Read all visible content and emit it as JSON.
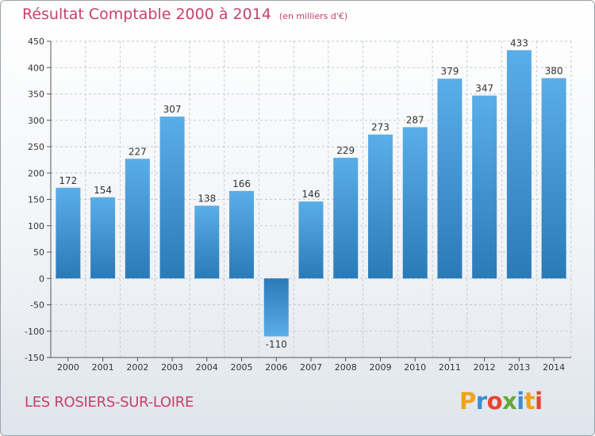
{
  "header": {
    "title": "Résultat Comptable 2000 à 2014",
    "subtitle": "(en milliers d'€)"
  },
  "footer": {
    "commune": "LES ROSIERS-SUR-LOIRE",
    "logo_text": "Proxiti"
  },
  "colors": {
    "title": "#c8416a",
    "bar_light": "#5aaee8",
    "bar_dark": "#2a7ab8",
    "grid": "#c4c9cf"
  },
  "chart_data": {
    "type": "bar",
    "title": "Résultat Comptable 2000 à 2014",
    "subtitle": "(en milliers d'€)",
    "categories": [
      "2000",
      "2001",
      "2002",
      "2003",
      "2004",
      "2005",
      "2006",
      "2007",
      "2008",
      "2009",
      "2010",
      "2011",
      "2012",
      "2013",
      "2014"
    ],
    "values": [
      172,
      154,
      227,
      307,
      138,
      166,
      -110,
      146,
      229,
      273,
      287,
      379,
      347,
      433,
      380
    ],
    "data_labels": [
      "172",
      "154",
      "227",
      "307",
      "138",
      "166",
      "-110",
      "146",
      "229",
      "273",
      "287",
      "379",
      "347",
      "433",
      "380"
    ],
    "y_ticks": [
      -150,
      -100,
      -50,
      0,
      50,
      100,
      150,
      200,
      250,
      300,
      350,
      400,
      450
    ],
    "y_tick_labels": [
      "-150",
      "-100",
      "-50",
      "0",
      "50",
      "100",
      "150",
      "200",
      "250",
      "300",
      "350",
      "400",
      "450"
    ],
    "ylim": [
      -150,
      450
    ],
    "xlabel": "",
    "ylabel": "",
    "grid": true,
    "legend": "none"
  }
}
